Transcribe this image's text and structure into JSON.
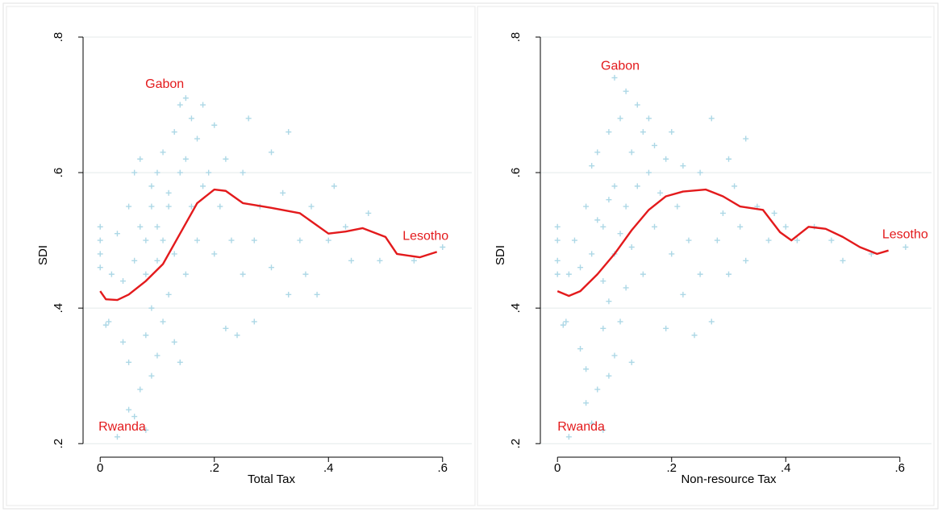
{
  "chart_data": [
    {
      "type": "scatter",
      "xlabel": "Total Tax",
      "ylabel": "SDI",
      "xlim": [
        -0.03,
        0.63
      ],
      "ylim": [
        0.18,
        0.8
      ],
      "xticks": [
        0,
        {
          "value": 0.2,
          "label": ".2"
        },
        {
          "value": 0.4,
          "label": ".4"
        },
        {
          "value": 0.6,
          "label": ".6"
        }
      ],
      "yticks": [
        {
          "value": 0.2,
          "label": ".2"
        },
        {
          "value": 0.4,
          "label": ".4"
        },
        {
          "value": 0.6,
          "label": ".6"
        },
        {
          "value": 0.8,
          "label": ".8"
        }
      ],
      "grid": true,
      "series": [
        {
          "type": "scatter",
          "color": "#add8e6",
          "x": [
            0,
            0,
            0,
            0,
            0.01,
            0.015,
            0.02,
            0.03,
            0.03,
            0.04,
            0.04,
            0.05,
            0.05,
            0.05,
            0.06,
            0.06,
            0.06,
            0.07,
            0.07,
            0.07,
            0.08,
            0.08,
            0.08,
            0.08,
            0.09,
            0.09,
            0.09,
            0.09,
            0.1,
            0.1,
            0.1,
            0.1,
            0.11,
            0.11,
            0.11,
            0.12,
            0.12,
            0.12,
            0.13,
            0.13,
            0.13,
            0.14,
            0.14,
            0.14,
            0.15,
            0.15,
            0.15,
            0.16,
            0.16,
            0.17,
            0.17,
            0.18,
            0.18,
            0.19,
            0.2,
            0.2,
            0.21,
            0.22,
            0.22,
            0.23,
            0.24,
            0.25,
            0.25,
            0.26,
            0.27,
            0.27,
            0.28,
            0.3,
            0.3,
            0.32,
            0.33,
            0.33,
            0.35,
            0.36,
            0.37,
            0.38,
            0.4,
            0.41,
            0.43,
            0.44,
            0.47,
            0.49,
            0.55,
            0.6
          ],
          "y": [
            0.5,
            0.48,
            0.46,
            0.52,
            0.375,
            0.38,
            0.45,
            0.21,
            0.51,
            0.35,
            0.44,
            0.25,
            0.55,
            0.32,
            0.24,
            0.47,
            0.6,
            0.28,
            0.52,
            0.62,
            0.22,
            0.36,
            0.45,
            0.5,
            0.3,
            0.4,
            0.55,
            0.58,
            0.33,
            0.47,
            0.52,
            0.6,
            0.38,
            0.5,
            0.63,
            0.42,
            0.55,
            0.57,
            0.35,
            0.48,
            0.66,
            0.32,
            0.6,
            0.7,
            0.71,
            0.45,
            0.62,
            0.55,
            0.68,
            0.5,
            0.65,
            0.58,
            0.7,
            0.6,
            0.48,
            0.67,
            0.55,
            0.37,
            0.62,
            0.5,
            0.36,
            0.45,
            0.6,
            0.68,
            0.38,
            0.5,
            0.55,
            0.63,
            0.46,
            0.57,
            0.42,
            0.66,
            0.5,
            0.45,
            0.55,
            0.42,
            0.5,
            0.58,
            0.52,
            0.47,
            0.54,
            0.47,
            0.47,
            0.49
          ]
        },
        {
          "type": "line",
          "color": "#e31a1c",
          "x": [
            0,
            0.01,
            0.03,
            0.05,
            0.08,
            0.11,
            0.14,
            0.17,
            0.2,
            0.22,
            0.25,
            0.3,
            0.35,
            0.38,
            0.4,
            0.43,
            0.46,
            0.5,
            0.52,
            0.56,
            0.59
          ],
          "y": [
            0.425,
            0.413,
            0.412,
            0.42,
            0.44,
            0.465,
            0.51,
            0.555,
            0.575,
            0.573,
            0.555,
            0.548,
            0.54,
            0.522,
            0.51,
            0.513,
            0.518,
            0.505,
            0.48,
            0.475,
            0.483
          ]
        }
      ],
      "annotations": [
        {
          "text": "Gabon",
          "x": 0.079,
          "y": 0.73,
          "color": "#e31a1c"
        },
        {
          "text": "Rwanda",
          "x": -0.003,
          "y": 0.224,
          "color": "#e31a1c"
        },
        {
          "text": "Lesotho",
          "x": 0.53,
          "y": 0.506,
          "color": "#e31a1c"
        }
      ]
    },
    {
      "type": "scatter",
      "xlabel": "Non-resource Tax",
      "ylabel": "SDI",
      "xlim": [
        -0.03,
        0.63
      ],
      "ylim": [
        0.18,
        0.8
      ],
      "xticks": [
        0,
        {
          "value": 0.2,
          "label": ".2"
        },
        {
          "value": 0.4,
          "label": ".4"
        },
        {
          "value": 0.6,
          "label": ".6"
        }
      ],
      "yticks": [
        {
          "value": 0.2,
          "label": ".2"
        },
        {
          "value": 0.4,
          "label": ".4"
        },
        {
          "value": 0.6,
          "label": ".6"
        },
        {
          "value": 0.8,
          "label": ".8"
        }
      ],
      "grid": true,
      "series": [
        {
          "type": "scatter",
          "color": "#add8e6",
          "x": [
            0,
            0,
            0,
            0,
            0.01,
            0.015,
            0.02,
            0.02,
            0.03,
            0.04,
            0.04,
            0.05,
            0.05,
            0.05,
            0.06,
            0.06,
            0.06,
            0.07,
            0.07,
            0.07,
            0.08,
            0.08,
            0.08,
            0.08,
            0.09,
            0.09,
            0.09,
            0.09,
            0.1,
            0.1,
            0.1,
            0.1,
            0.11,
            0.11,
            0.11,
            0.12,
            0.12,
            0.12,
            0.13,
            0.13,
            0.13,
            0.14,
            0.14,
            0.15,
            0.15,
            0.16,
            0.16,
            0.17,
            0.17,
            0.18,
            0.19,
            0.19,
            0.2,
            0.2,
            0.21,
            0.22,
            0.22,
            0.23,
            0.24,
            0.25,
            0.25,
            0.27,
            0.27,
            0.28,
            0.29,
            0.3,
            0.3,
            0.31,
            0.32,
            0.33,
            0.33,
            0.35,
            0.37,
            0.38,
            0.4,
            0.42,
            0.45,
            0.48,
            0.5,
            0.55,
            0.61
          ],
          "y": [
            0.5,
            0.47,
            0.45,
            0.52,
            0.375,
            0.38,
            0.45,
            0.21,
            0.5,
            0.34,
            0.46,
            0.26,
            0.55,
            0.31,
            0.23,
            0.48,
            0.61,
            0.28,
            0.53,
            0.63,
            0.22,
            0.37,
            0.44,
            0.52,
            0.3,
            0.41,
            0.56,
            0.66,
            0.33,
            0.48,
            0.58,
            0.74,
            0.38,
            0.51,
            0.68,
            0.43,
            0.55,
            0.72,
            0.32,
            0.49,
            0.63,
            0.7,
            0.58,
            0.66,
            0.45,
            0.6,
            0.68,
            0.52,
            0.64,
            0.57,
            0.37,
            0.62,
            0.48,
            0.66,
            0.55,
            0.42,
            0.61,
            0.5,
            0.36,
            0.45,
            0.6,
            0.68,
            0.38,
            0.5,
            0.54,
            0.62,
            0.45,
            0.58,
            0.52,
            0.47,
            0.65,
            0.55,
            0.5,
            0.54,
            0.52,
            0.5,
            0.52,
            0.5,
            0.47,
            0.48,
            0.49
          ]
        },
        {
          "type": "line",
          "color": "#e31a1c",
          "x": [
            0,
            0.02,
            0.04,
            0.07,
            0.1,
            0.13,
            0.16,
            0.19,
            0.22,
            0.26,
            0.29,
            0.32,
            0.36,
            0.39,
            0.41,
            0.44,
            0.47,
            0.5,
            0.53,
            0.56,
            0.58
          ],
          "y": [
            0.425,
            0.418,
            0.425,
            0.45,
            0.48,
            0.515,
            0.545,
            0.565,
            0.572,
            0.575,
            0.565,
            0.55,
            0.545,
            0.512,
            0.5,
            0.52,
            0.517,
            0.505,
            0.49,
            0.48,
            0.485
          ]
        }
      ],
      "annotations": [
        {
          "text": "Gabon",
          "x": 0.076,
          "y": 0.757,
          "color": "#e31a1c"
        },
        {
          "text": "Rwanda",
          "x": 0,
          "y": 0.224,
          "color": "#e31a1c"
        },
        {
          "text": "Lesotho",
          "x": 0.569,
          "y": 0.508,
          "color": "#e31a1c"
        }
      ]
    }
  ]
}
